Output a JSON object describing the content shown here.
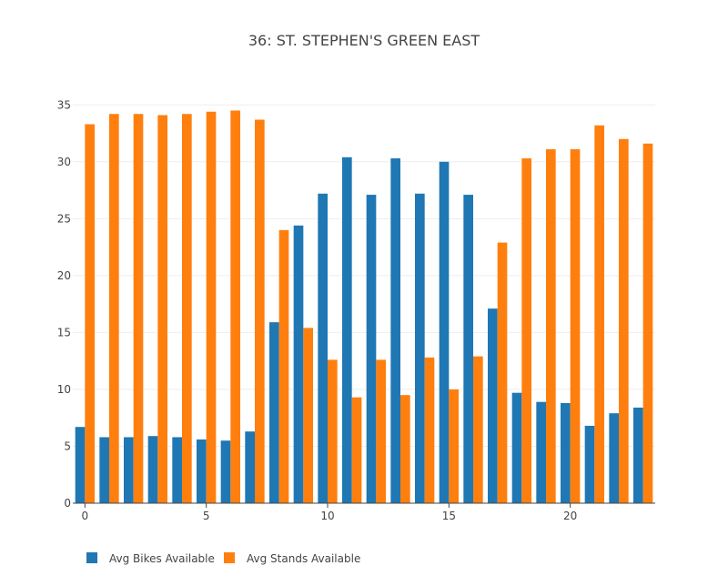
{
  "chart_data": {
    "type": "bar",
    "title": "36: ST. STEPHEN'S GREEN EAST",
    "xlabel": "",
    "ylabel": "",
    "x": [
      0,
      1,
      2,
      3,
      4,
      5,
      6,
      7,
      8,
      9,
      10,
      11,
      12,
      13,
      14,
      15,
      16,
      17,
      18,
      19,
      20,
      21,
      22,
      23
    ],
    "x_ticks": [
      0,
      5,
      10,
      15,
      20
    ],
    "y_ticks": [
      0,
      5,
      10,
      15,
      20,
      25,
      30,
      35
    ],
    "ylim": [
      0,
      35.5
    ],
    "xlim": [
      -0.5,
      23.5
    ],
    "grid": true,
    "legend_position": "bottom-left",
    "series": [
      {
        "name": "Avg Bikes Available",
        "color": "#1f77b4",
        "values": [
          6.7,
          5.8,
          5.8,
          5.9,
          5.8,
          5.6,
          5.5,
          6.3,
          15.9,
          24.4,
          27.2,
          30.4,
          27.1,
          30.3,
          27.2,
          30.0,
          27.1,
          17.1,
          9.7,
          8.9,
          8.8,
          6.8,
          7.9,
          8.4
        ]
      },
      {
        "name": "Avg Stands Available",
        "color": "#ff7f0e",
        "values": [
          33.3,
          34.2,
          34.2,
          34.1,
          34.2,
          34.4,
          34.5,
          33.7,
          24.0,
          15.4,
          12.6,
          9.3,
          12.6,
          9.5,
          12.8,
          10.0,
          12.9,
          22.9,
          30.3,
          31.1,
          31.1,
          33.2,
          32.0,
          31.6
        ]
      }
    ]
  }
}
